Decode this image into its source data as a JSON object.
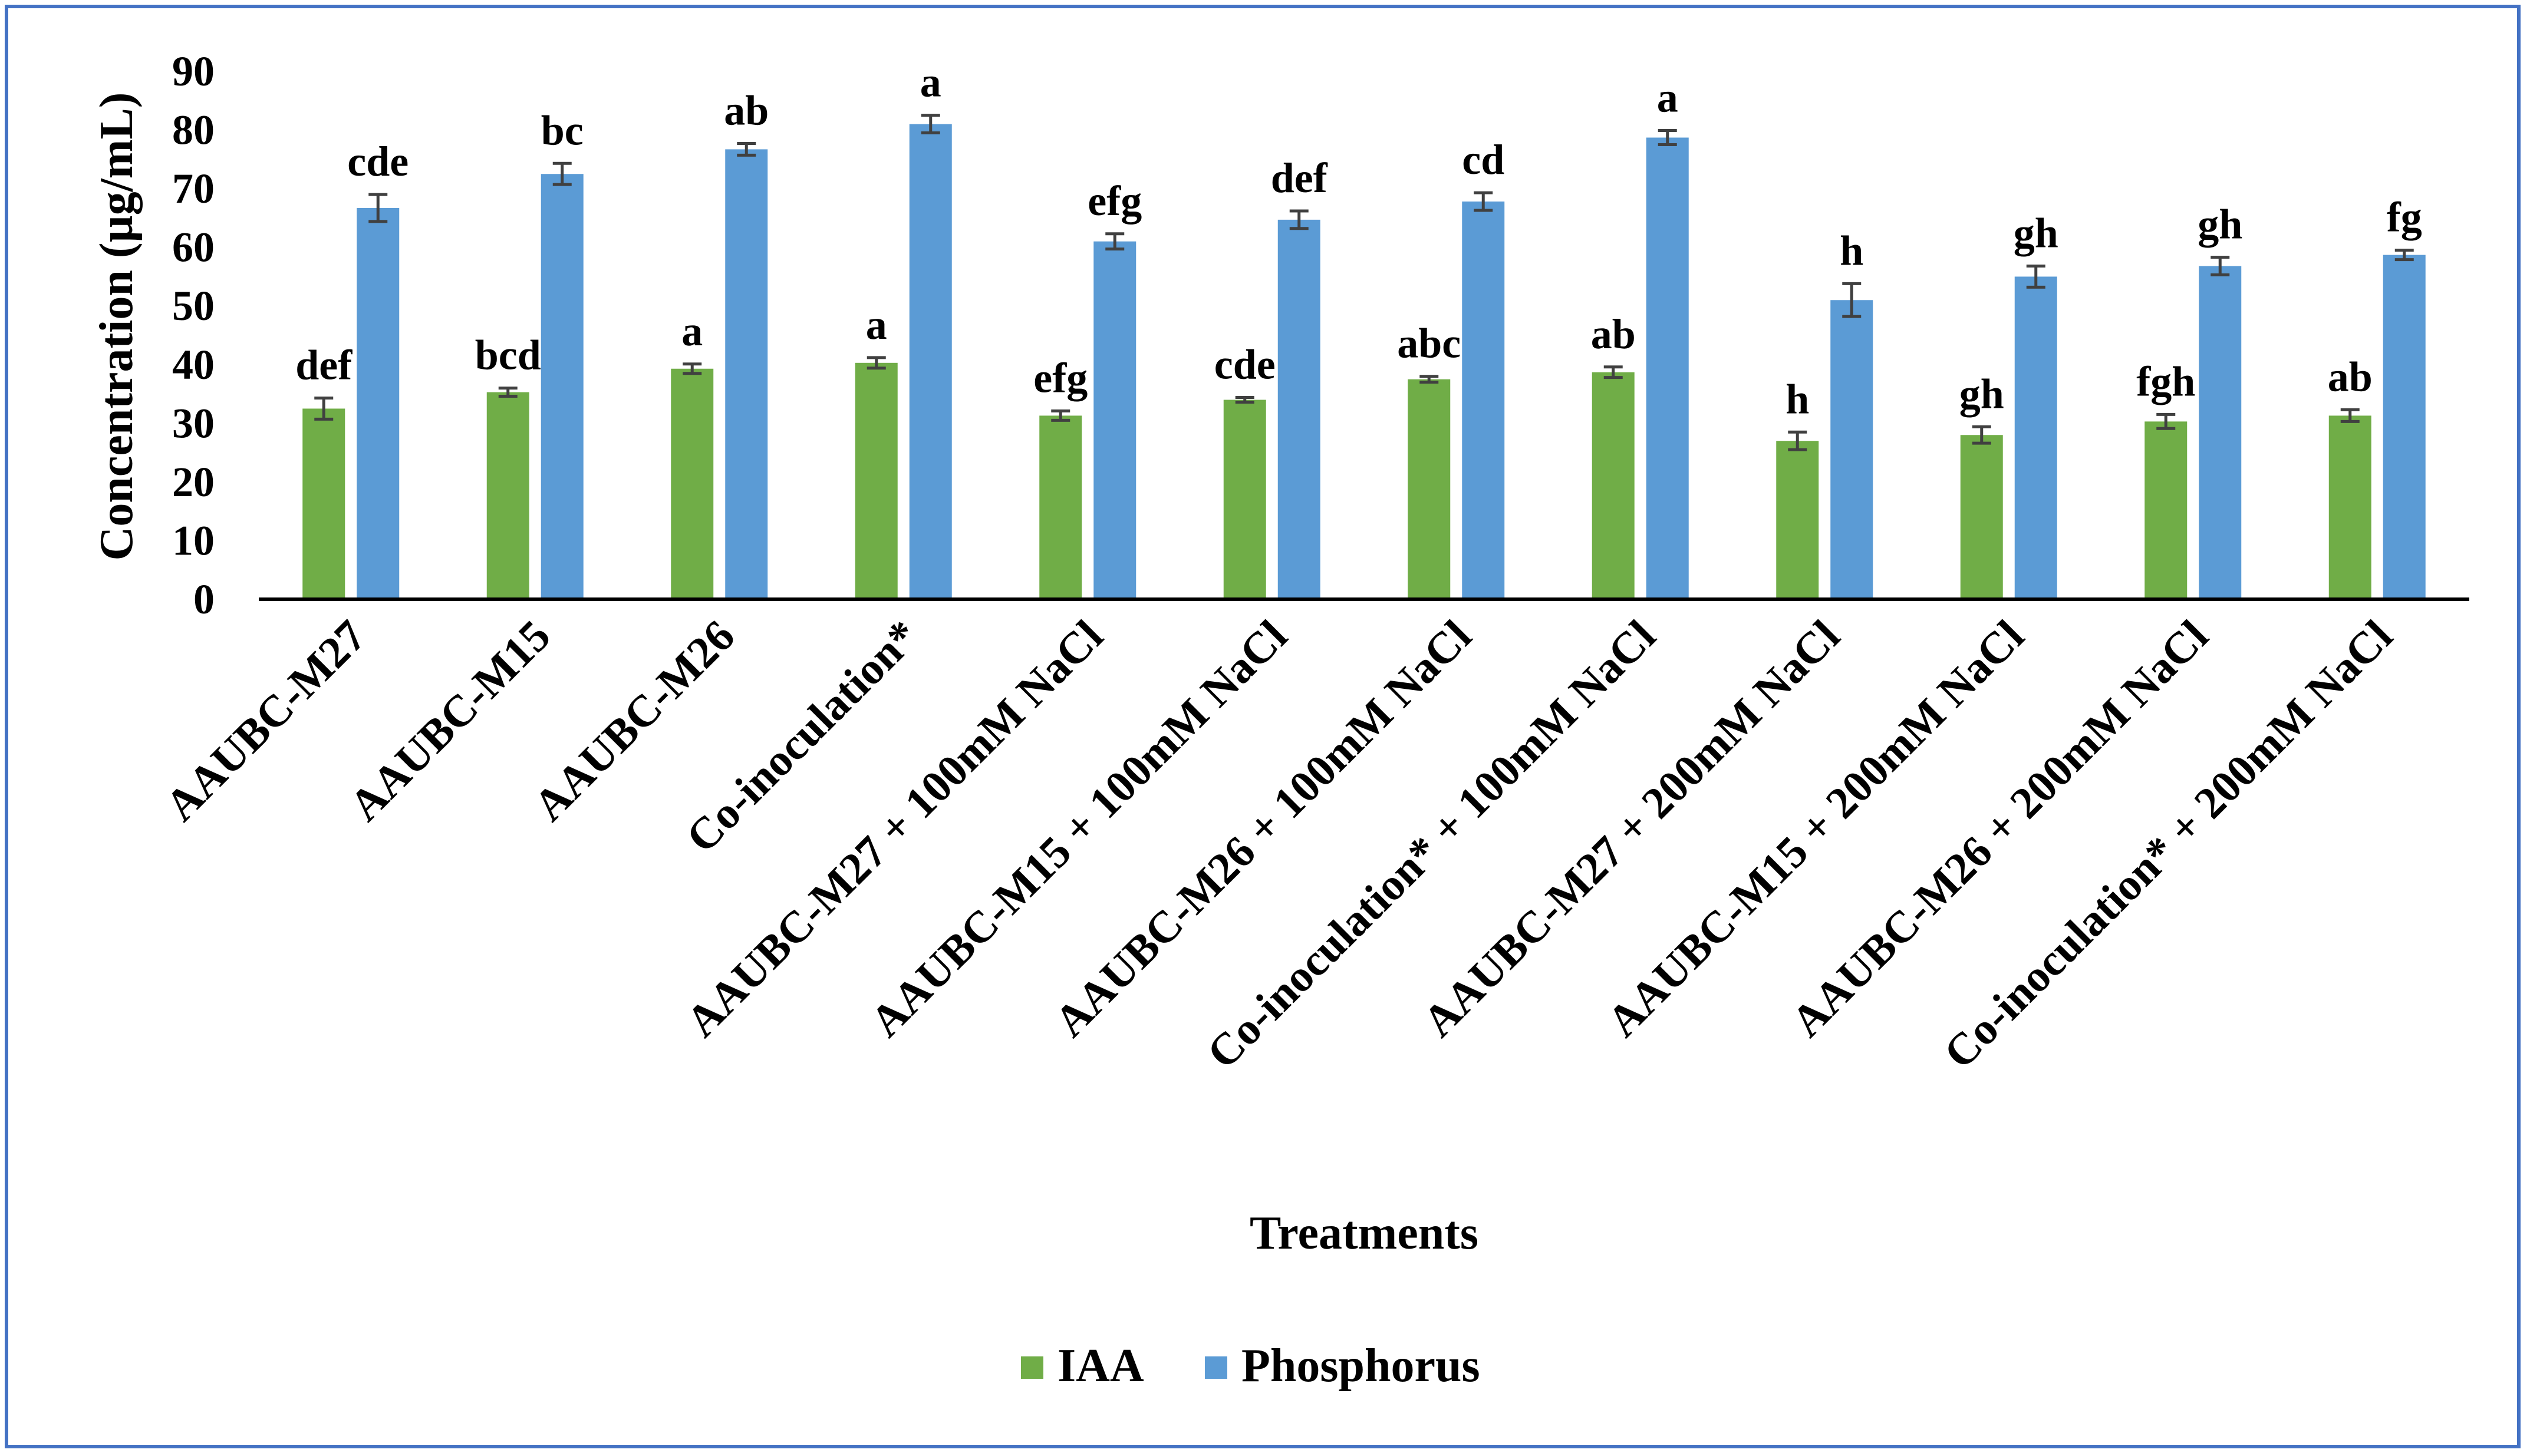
{
  "chart_data": {
    "type": "bar",
    "title": "",
    "xlabel": "Treatments",
    "ylabel": "Concentration (µg/mL)",
    "ylim": [
      0,
      90
    ],
    "yticks": [
      0,
      10,
      20,
      30,
      40,
      50,
      60,
      70,
      80,
      90
    ],
    "grid": false,
    "legend_position": "bottom",
    "categories": [
      "AAUBC-M27",
      "AAUBC-M15",
      "AAUBC-M26",
      "Co-inoculation*",
      "AAUBC-M27 + 100mM NaCl",
      "AAUBC-M15 + 100mM NaCl",
      "AAUBC-M26 + 100mM NaCl",
      "Co-inoculation* + 100mM NaCl",
      "AAUBC-M27 + 200mM NaCl",
      "AAUBC-M15 + 200mM NaCl",
      "AAUBC-M26 + 200mM NaCl",
      "Co-inoculation* + 200mM NaCl"
    ],
    "series": [
      {
        "name": "IAA",
        "color": "#70ad47",
        "values": [
          32.5,
          35.3,
          39.3,
          40.3,
          31.3,
          34.0,
          37.5,
          38.7,
          27.0,
          28.0,
          30.3,
          31.3
        ],
        "errors": [
          1.8,
          0.7,
          0.8,
          0.9,
          0.8,
          0.4,
          0.5,
          0.9,
          1.5,
          1.4,
          1.2,
          1.0
        ],
        "labels": [
          "def",
          "bcd",
          "a",
          "a",
          "efg",
          "cde",
          "abc",
          "ab",
          "h",
          "gh",
          "fgh",
          "ab"
        ]
      },
      {
        "name": "Phosphorus",
        "color": "#5b9bd5",
        "values": [
          66.7,
          72.5,
          76.7,
          81.0,
          61.0,
          64.7,
          67.8,
          78.7,
          51.0,
          55.0,
          56.8,
          58.7
        ],
        "errors": [
          2.3,
          1.8,
          1.0,
          1.5,
          1.3,
          1.5,
          1.5,
          1.2,
          2.8,
          1.8,
          1.5,
          0.8
        ],
        "labels": [
          "cde",
          "bc",
          "ab",
          "a",
          "efg",
          "def",
          "cd",
          "a",
          "h",
          "gh",
          "gh",
          "fg"
        ]
      }
    ]
  }
}
